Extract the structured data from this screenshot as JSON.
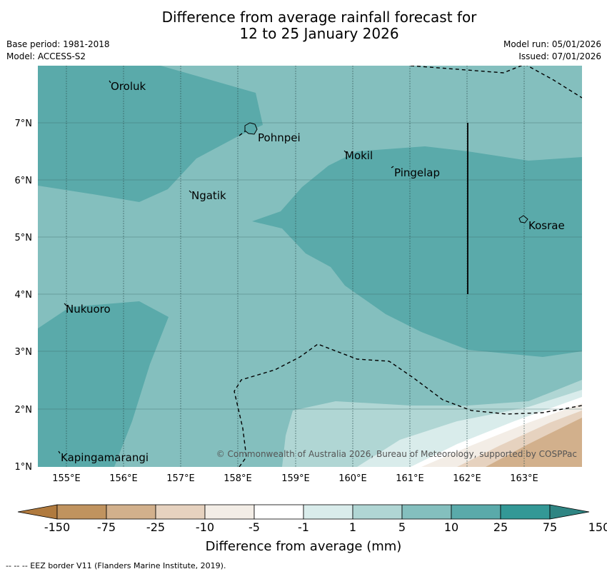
{
  "title": {
    "line1": "Difference from average rainfall forecast for",
    "line2": "12 to 25 January 2026"
  },
  "meta": {
    "base_period": "Base period: 1981-2018",
    "model": "Model: ACCESS-S2",
    "model_run": "Model run: 05/01/2026",
    "issued": "Issued: 07/01/2026"
  },
  "map": {
    "lat_labels": [
      "7°N",
      "6°N",
      "5°N",
      "4°N",
      "3°N",
      "2°N",
      "1°N"
    ],
    "lon_labels": [
      "155°E",
      "156°E",
      "157°E",
      "158°E",
      "159°E",
      "160°E",
      "161°E",
      "162°E",
      "163°E"
    ],
    "places": [
      "Oroluk",
      "Pohnpei",
      "Mokil",
      "Pingelap",
      "Ngatik",
      "Kosrae",
      "Nukuoro",
      "Kapingamarangi"
    ],
    "copyright": "© Commonwealth of Australia 2026, Bureau of Meteorology, supported by COSPPac"
  },
  "colorbar": {
    "colors": [
      "#b07a3e",
      "#c0935f",
      "#d2b08c",
      "#e6d2bf",
      "#f3ede6",
      "#ffffff",
      "#d9eceb",
      "#b0d6d4",
      "#84bfbe",
      "#5aaaaa",
      "#339896",
      "#2f8583"
    ],
    "tick_labels": [
      "-150",
      "-75",
      "-25",
      "-10",
      "-5",
      "-1",
      "1",
      "5",
      "10",
      "25",
      "75",
      "150"
    ],
    "title": "Difference from average (mm)"
  },
  "footnote": "--  --  -- EEZ border V11 (Flanders Marine Institute, 2019)."
}
